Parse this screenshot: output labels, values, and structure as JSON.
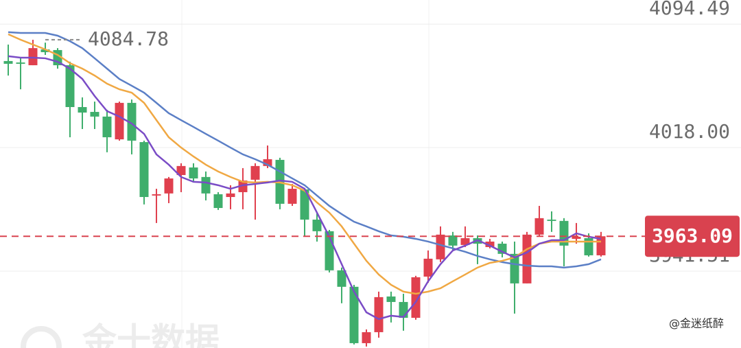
{
  "chart_data": {
    "type": "candlestick",
    "ylim": [
      3893.9,
      4109.4
    ],
    "yticks": [
      4094.49,
      {
        "value": 4018,
        "label": "4018.00"
      },
      3941.51
    ],
    "grid": true,
    "up_color": "#e0404e",
    "down_color": "#3fae6c",
    "open": [
      4071.6,
      4070.7,
      4069.0,
      4078.8,
      4078.4,
      4069.0,
      4043.1,
      4040.1,
      4037.2,
      4023.1,
      4045.7,
      4021.4,
      3988.3,
      3989.6,
      4001.0,
      4005.7,
      3999.8,
      3989.1,
      3987.4,
      3990.4,
      3998.1,
      4006.6,
      4010.4,
      3983.2,
      3992.1,
      3973.4,
      3966.2,
      3942.0,
      3931.8,
      3896.9,
      3903.7,
      3925.8,
      3922.4,
      3912.6,
      3938.1,
      3948.8,
      3963.6,
      3957.7,
      3961.9,
      3956.4,
      3958.5,
      3952.2,
      3933.9,
      3964.1,
      3973.4,
      3972.6,
      3961.5,
      3961.9,
      3951.3
    ],
    "high": [
      4081.8,
      4073.3,
      4084.78,
      4083.0,
      4079.6,
      4071.2,
      4049.1,
      4046.5,
      4041.4,
      4046.5,
      4047.8,
      4022.3,
      3992.5,
      3999.8,
      4008.3,
      4008.3,
      4003.2,
      3990.4,
      3994.7,
      4005.3,
      4008.3,
      4019.3,
      4011.7,
      3995.5,
      3993.0,
      3977.7,
      3967.0,
      3943.7,
      3933.0,
      3905.4,
      3928.8,
      3928.8,
      3927.5,
      3938.6,
      3954.3,
      3969.2,
      3965.8,
      3969.2,
      3963.6,
      3961.5,
      3959.8,
      3959.8,
      3965.8,
      3981.9,
      3978.5,
      3974.3,
      3971.3,
      3964.9,
      3965.8
    ],
    "low": [
      4062.6,
      4054.1,
      4069.0,
      4075.4,
      4066.9,
      4024.4,
      4029.5,
      4029.5,
      4015.1,
      4022.3,
      4013.8,
      3982.8,
      3971.3,
      3983.6,
      3990.4,
      3996.8,
      3985.3,
      3979.4,
      3979.8,
      3979.8,
      3973.4,
      4005.3,
      3979.8,
      3981.9,
      3962.8,
      3959.8,
      3940.7,
      3921.6,
      3896.1,
      3894.8,
      3900.3,
      3909.7,
      3904.6,
      3911.4,
      3934.3,
      3947.1,
      3954.3,
      3956.4,
      3945.8,
      3955.6,
      3950.0,
      3915.2,
      3933.9,
      3962.8,
      3965.8,
      3944.5,
      3958.5,
      3950.5,
      3950.5
    ],
    "close": [
      4069.9,
      4069.9,
      4079.6,
      4077.1,
      4069.0,
      4043.1,
      4039.7,
      4037.2,
      4024.4,
      4045.7,
      4022.3,
      3987.4,
      3989.1,
      3998.9,
      4006.6,
      3998.9,
      3989.6,
      3980.6,
      3989.6,
      3997.6,
      4006.6,
      4010.8,
      3983.2,
      3992.5,
      3973.4,
      3966.2,
      3942.0,
      3931.8,
      3896.9,
      3903.7,
      3925.4,
      3922.4,
      3912.6,
      3937.7,
      3949.2,
      3964.1,
      3957.3,
      3961.9,
      3958.5,
      3959.8,
      3952.2,
      3933.9,
      3964.1,
      3974.3,
      3972.6,
      3957.3,
      3962.8,
      3951.3,
      3963.09
    ],
    "lines": [
      {
        "color": "#5b7fc6",
        "values": [
          4089.5,
          4089.0,
          4089.0,
          4089.0,
          4087.3,
          4083.9,
          4079.6,
          4073.3,
          4066.9,
          4060.5,
          4056.3,
          4052.0,
          4045.7,
          4039.3,
          4035.0,
          4030.8,
          4026.5,
          4022.3,
          4018.0,
          4013.8,
          4010.8,
          4007.4,
          4003.2,
          3998.9,
          3994.7,
          3988.3,
          3981.9,
          3976.8,
          3972.1,
          3969.2,
          3966.2,
          3963.6,
          3962.8,
          3961.5,
          3959.8,
          3957.7,
          3955.6,
          3953.5,
          3950.9,
          3948.8,
          3947.1,
          3945.8,
          3944.9,
          3944.5,
          3944.5,
          3943.7,
          3944.5,
          3945.8,
          3948.8
        ]
      },
      {
        "color": "#f0a843",
        "values": [
          4088.2,
          4084.8,
          4081.8,
          4078.8,
          4075.4,
          4070.3,
          4066.9,
          4062.6,
          4057.6,
          4054.1,
          4052.0,
          4045.7,
          4035.0,
          4024.4,
          4018.0,
          4012.5,
          4007.4,
          4003.2,
          3999.8,
          3996.8,
          3996.4,
          3996.8,
          3996.4,
          3994.7,
          3991.3,
          3984.0,
          3977.7,
          3969.2,
          3958.5,
          3947.9,
          3939.4,
          3933.0,
          3928.8,
          3927.5,
          3928.8,
          3930.9,
          3935.2,
          3939.4,
          3943.7,
          3946.6,
          3947.9,
          3950.0,
          3955.1,
          3958.5,
          3959.8,
          3959.8,
          3959.8,
          3959.8,
          3959.8
        ]
      },
      {
        "color": "#7a4cc6",
        "values": [
          4074.6,
          4073.7,
          4073.7,
          4073.3,
          4071.2,
          4066.9,
          4060.5,
          4049.9,
          4040.6,
          4037.2,
          4032.9,
          4026.5,
          4013.8,
          4007.4,
          3999.8,
          3996.8,
          3996.4,
          3994.7,
          3992.5,
          3994.7,
          3995.5,
          3996.4,
          3997.6,
          3996.8,
          3992.5,
          3977.7,
          3962.8,
          3945.8,
          3928.8,
          3916.0,
          3911.8,
          3913.9,
          3913.1,
          3922.4,
          3935.2,
          3945.8,
          3954.3,
          3957.3,
          3960.7,
          3957.3,
          3953.5,
          3950.0,
          3953.0,
          3958.5,
          3960.7,
          3960.7,
          3964.9,
          3962.8,
          3961.5
        ]
      }
    ],
    "max_marker": 4084.78,
    "last_price": 3963.09,
    "watermark": "金十数据",
    "credit": "@金迷纸醉"
  }
}
